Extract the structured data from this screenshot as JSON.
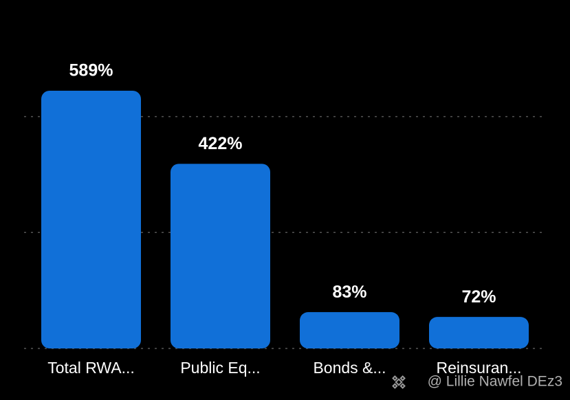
{
  "chart_data": {
    "type": "bar",
    "categories": [
      "Total RWA...",
      "Public Eq...",
      "Bonds &...",
      "Reinsuran..."
    ],
    "values": [
      589,
      422,
      83,
      72
    ],
    "value_labels": [
      "589%",
      "422%",
      "83%",
      "72%"
    ],
    "color": "#1170d8",
    "ylim": [
      0,
      600
    ],
    "yticks": [
      0,
      265,
      530
    ],
    "grid": true,
    "watermark": "@ Lillie Nawfel DEz3"
  }
}
